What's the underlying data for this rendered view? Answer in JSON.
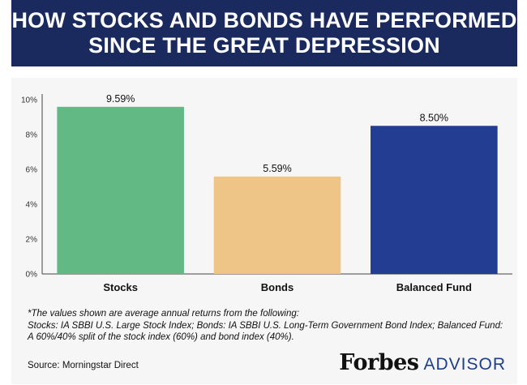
{
  "header": {
    "title_line1": "HOW STOCKS AND BONDS HAVE PERFORMED",
    "title_line2": "SINCE THE GREAT DEPRESSION"
  },
  "chart_data": {
    "type": "bar",
    "categories": [
      "Stocks",
      "Bonds",
      "Balanced Fund"
    ],
    "values": [
      9.59,
      5.59,
      8.5
    ],
    "data_labels": [
      "9.59%",
      "5.59%",
      "8.50%"
    ],
    "colors": [
      "#62b984",
      "#eec487",
      "#233d93"
    ],
    "yticks": [
      "0%",
      "2%",
      "4%",
      "6%",
      "8%",
      "10%"
    ],
    "ylim": [
      0,
      10
    ],
    "grid": false,
    "legend": "none"
  },
  "footnote": {
    "line1": "*The values shown are average annual returns from the following:",
    "line2": "Stocks: IA SBBI U.S. Large Stock Index; Bonds: IA SBBI U.S. Long-Term Government Bond Index; Balanced Fund: A 60%/40% split of the stock index (60%) and bond index (40%)."
  },
  "source": "Source: Morningstar Direct",
  "brand": {
    "forbes": "Forbes",
    "advisor": "ADVISOR"
  }
}
